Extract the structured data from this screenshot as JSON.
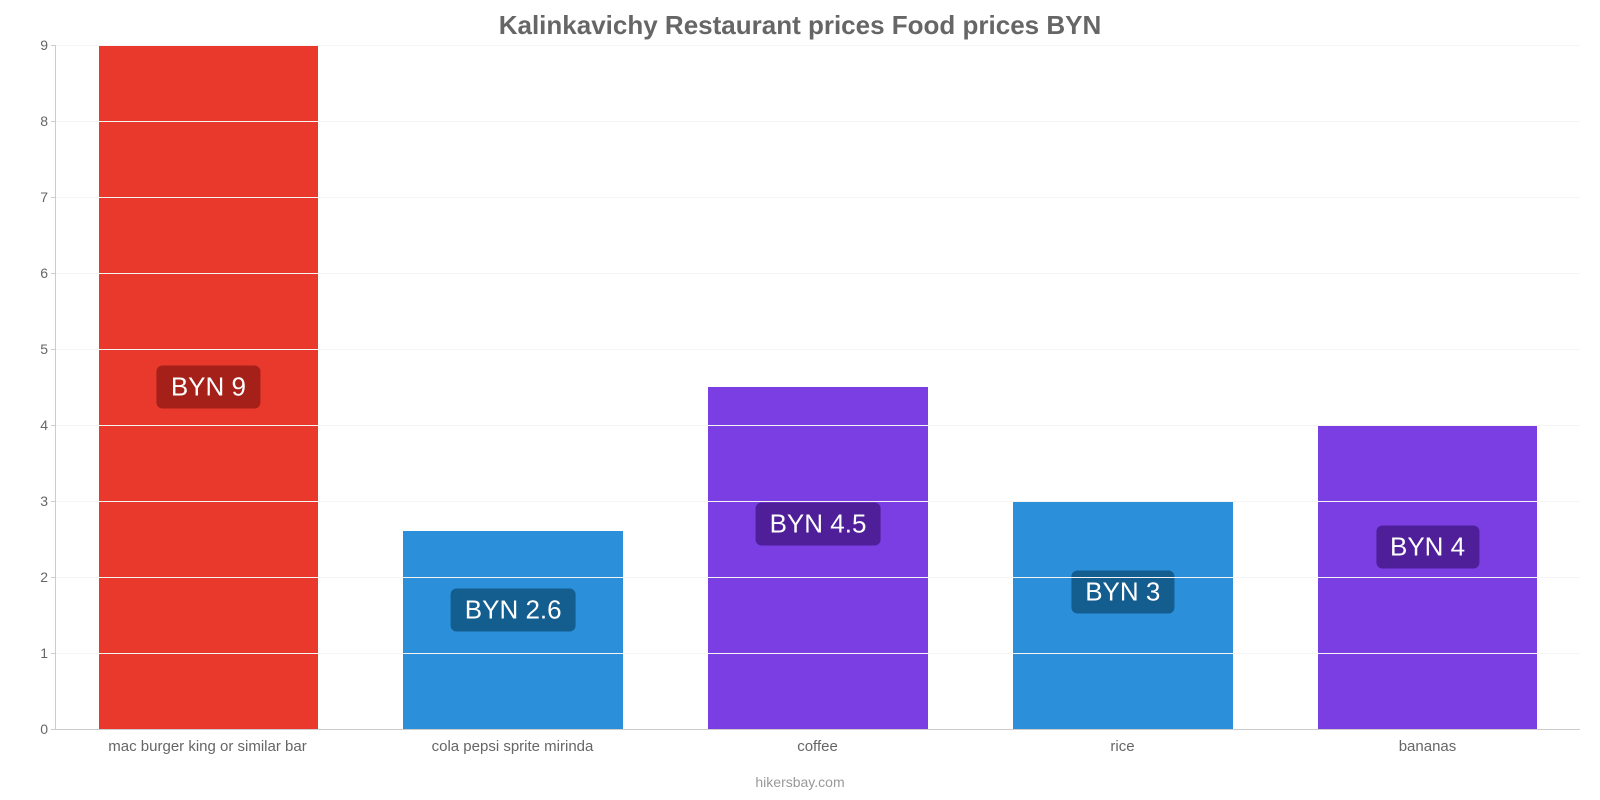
{
  "chart": {
    "type": "bar",
    "title": "Kalinkavichy Restaurant prices Food prices BYN",
    "title_color": "#666666",
    "title_fontsize": 26,
    "background_color": "#ffffff",
    "grid_color": "#f5f5f5",
    "axis_color": "#cccccc",
    "tick_color": "#666666",
    "tick_fontsize": 14,
    "xlabel_fontsize": 15,
    "ylim": [
      0,
      9
    ],
    "yticks": [
      0,
      1,
      2,
      3,
      4,
      5,
      6,
      7,
      8,
      9
    ],
    "categories": [
      "mac burger king or similar bar",
      "cola pepsi sprite mirinda",
      "coffee",
      "rice",
      "bananas"
    ],
    "values": [
      9,
      2.6,
      4.5,
      3,
      4
    ],
    "bar_colors": [
      "#e9392c",
      "#2b90d9",
      "#7a3ee2",
      "#2b90d9",
      "#7a3ee2"
    ],
    "value_labels": [
      "BYN 9",
      "BYN 2.6",
      "BYN 4.5",
      "BYN 3",
      "BYN 4"
    ],
    "label_bg_colors": [
      "#a52019",
      "#145d8f",
      "#4f1f99",
      "#145d8f",
      "#4f1f99"
    ],
    "label_text_color": "#ffffff",
    "label_fontsize": 26,
    "label_vertical_position": "center",
    "bar_width": 0.72,
    "source": "hikersbay.com",
    "source_color": "#999999"
  }
}
